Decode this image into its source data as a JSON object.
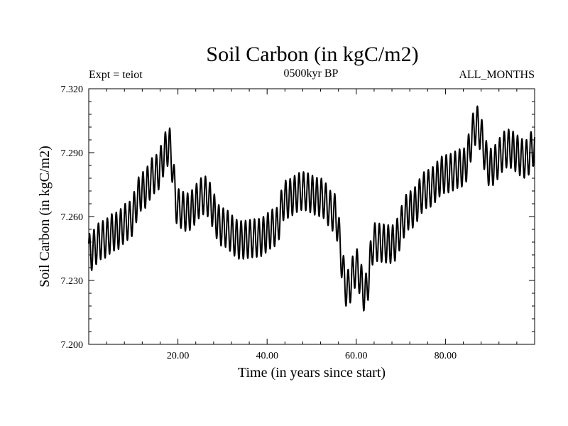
{
  "chart_data": {
    "type": "line",
    "title": "Soil Carbon (in kgC/m2)",
    "subtitle": "0500kyr BP",
    "left_label": "Expt = teiot",
    "right_label": "ALL_MONTHS",
    "xlabel": "Time (in years since start)",
    "ylabel": "Soil Carbon (in kgC/m2)",
    "xlim": [
      0,
      100
    ],
    "ylim": [
      7.2,
      7.32
    ],
    "xticks": [
      20,
      40,
      60,
      80
    ],
    "xtick_labels": [
      "20.00",
      "40.00",
      "60.00",
      "80.00"
    ],
    "yticks": [
      7.2,
      7.23,
      7.26,
      7.29,
      7.32
    ],
    "ytick_labels": [
      "7.200",
      "7.230",
      "7.260",
      "7.290",
      "7.320"
    ],
    "series": [
      {
        "name": "Soil Carbon",
        "color": "#000000",
        "seasonal_amplitude": 0.009,
        "period_years": 1,
        "x": [
          0,
          3,
          6,
          9,
          12,
          15,
          18,
          20,
          22,
          26,
          30,
          34,
          38,
          42,
          44,
          48,
          52,
          55,
          58,
          60,
          62,
          64,
          68,
          72,
          76,
          80,
          84,
          87,
          90,
          94,
          98,
          100
        ],
        "y": [
          7.243,
          7.249,
          7.253,
          7.258,
          7.272,
          7.28,
          7.293,
          7.264,
          7.262,
          7.27,
          7.255,
          7.249,
          7.25,
          7.255,
          7.268,
          7.272,
          7.269,
          7.262,
          7.226,
          7.236,
          7.224,
          7.248,
          7.247,
          7.263,
          7.273,
          7.28,
          7.283,
          7.303,
          7.283,
          7.292,
          7.287,
          7.293
        ]
      }
    ]
  }
}
